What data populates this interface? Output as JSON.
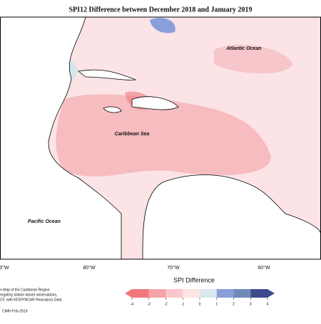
{
  "header": {
    "title": "SPI12 Difference between December 2018 and January 2019"
  },
  "map": {
    "labels": [
      "Atlantic Ocean",
      "Caribbean Sea",
      "Pacific Ocean"
    ],
    "longitudes": [
      "0°W",
      "80°W",
      "70°W",
      "60°W"
    ]
  },
  "legend": {
    "title": "SPI Difference",
    "ticks": [
      -4,
      -3,
      -2,
      -1,
      0,
      1,
      2,
      3,
      4
    ],
    "colors": [
      "#f2777d",
      "#f5a3a6",
      "#f9c8ca",
      "#fce3e4",
      "#d8e8ee",
      "#8a9fd9",
      "#6f8bb8",
      "#3f4a8c"
    ]
  },
  "notes": [
    "n Map of the Caribbean Region",
    "regating station based observations,",
    "CF, with NCEP/NCAR Reanalysis Data."
  ],
  "credit": "CIMH Feb-2019"
}
